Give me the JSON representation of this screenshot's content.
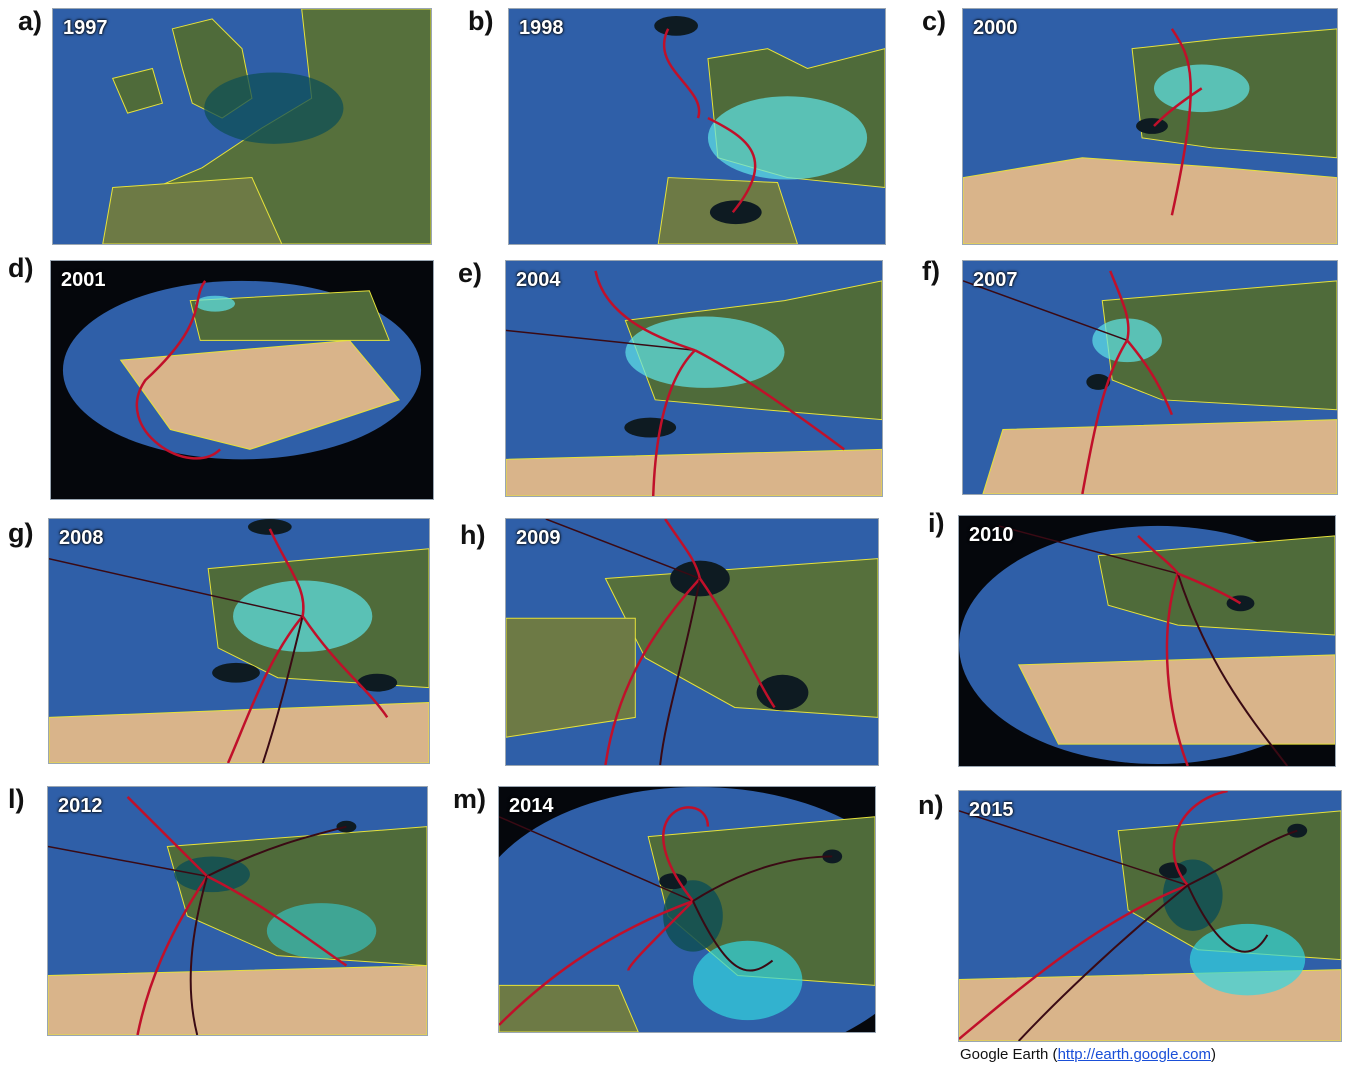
{
  "panels": [
    {
      "letter": "a)",
      "year": "1997"
    },
    {
      "letter": "b)",
      "year": "1998"
    },
    {
      "letter": "c)",
      "year": "2000"
    },
    {
      "letter": "d)",
      "year": "2001"
    },
    {
      "letter": "e)",
      "year": "2004"
    },
    {
      "letter": "f)",
      "year": "2007"
    },
    {
      "letter": "g)",
      "year": "2008"
    },
    {
      "letter": "h)",
      "year": "2009"
    },
    {
      "letter": "i)",
      "year": "2010"
    },
    {
      "letter": "l)",
      "year": "2012"
    },
    {
      "letter": "m)",
      "year": "2014"
    },
    {
      "letter": "n)",
      "year": "2015"
    }
  ],
  "credit": {
    "prefix": "Google Earth (",
    "link": "http://earth.google.com",
    "suffix": ")"
  },
  "colors": {
    "ocean": "#2f5fa8",
    "land": "#4f6b3a",
    "desert": "#d9b48a",
    "border": "#e6e23a",
    "arc": "#c0102a",
    "arc_dark": "#3a0a14",
    "halo_cyan": "#33d6df",
    "dark_node": "#0e1b22",
    "space": "#05070c"
  }
}
